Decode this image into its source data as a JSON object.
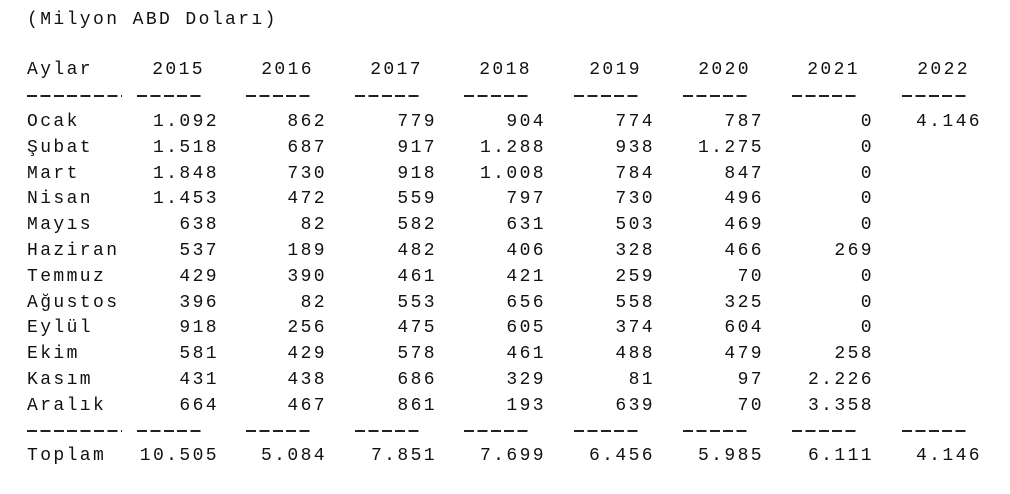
{
  "unit_note": "(Milyon ABD Doları)",
  "table": {
    "header": [
      "Aylar",
      "2015",
      "2016",
      "2017",
      "2018",
      "2019",
      "2020",
      "2021",
      "2022"
    ],
    "rows": [
      [
        "Ocak",
        "1.092",
        "862",
        "779",
        "904",
        "774",
        "787",
        "0",
        "4.146"
      ],
      [
        "Şubat",
        "1.518",
        "687",
        "917",
        "1.288",
        "938",
        "1.275",
        "0"
      ],
      [
        "Mart",
        "1.848",
        "730",
        "918",
        "1.008",
        "784",
        "847",
        "0"
      ],
      [
        "Nisan",
        "1.453",
        "472",
        "559",
        "797",
        "730",
        "496",
        "0"
      ],
      [
        "Mayıs",
        "638",
        "82",
        "582",
        "631",
        "503",
        "469",
        "0"
      ],
      [
        "Haziran",
        "537",
        "189",
        "482",
        "406",
        "328",
        "466",
        "269"
      ],
      [
        "Temmuz",
        "429",
        "390",
        "461",
        "421",
        "259",
        "70",
        "0"
      ],
      [
        "Ağustos",
        "396",
        "82",
        "553",
        "656",
        "558",
        "325",
        "0"
      ],
      [
        "Eylül",
        "918",
        "256",
        "475",
        "605",
        "374",
        "604",
        "0"
      ],
      [
        "Ekim",
        "581",
        "429",
        "578",
        "461",
        "488",
        "479",
        "258"
      ],
      [
        "Kasım",
        "431",
        "438",
        "686",
        "329",
        "81",
        "97",
        "2.226"
      ],
      [
        "Aralık",
        "664",
        "467",
        "861",
        "193",
        "639",
        "70",
        "3.358"
      ]
    ],
    "total": [
      "Toplam",
      "10.505",
      "5.084",
      "7.851",
      "7.699",
      "6.456",
      "5.985",
      "6.111",
      "4.146"
    ]
  }
}
